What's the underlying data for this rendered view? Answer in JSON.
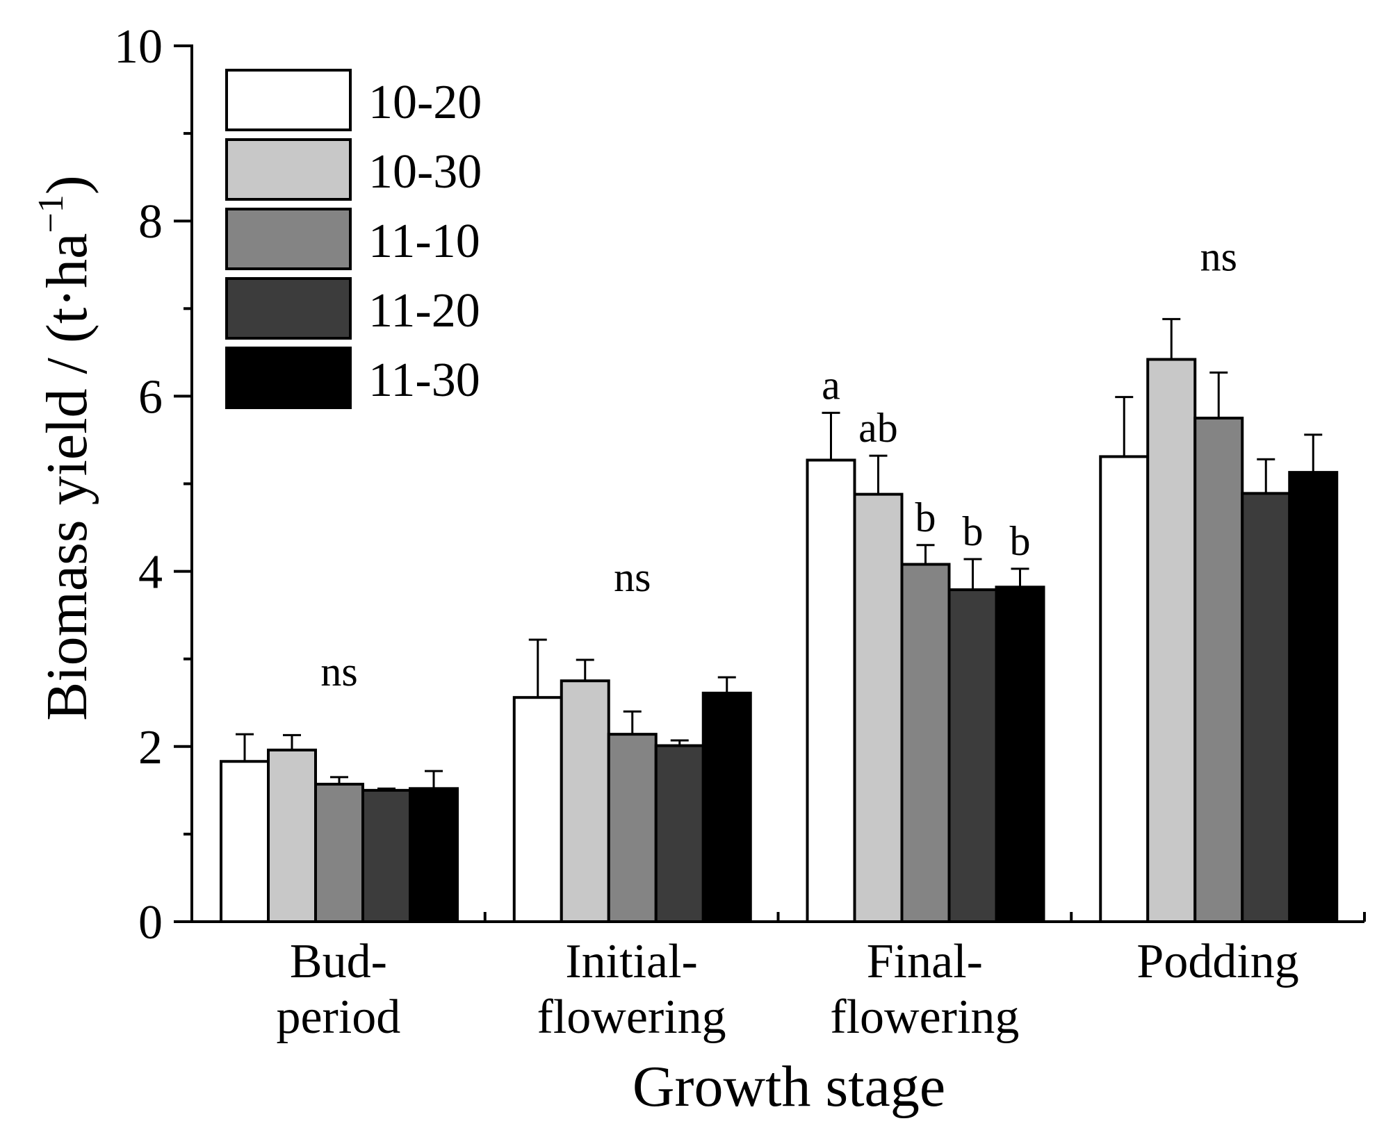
{
  "chart_data": {
    "type": "bar",
    "xlabel": "Growth stage",
    "ylabel_main": "Biomass yield / (t·ha",
    "ylabel_sup": "−1",
    "ylabel_close": ")",
    "ylim": [
      0,
      10
    ],
    "yticks": [
      0,
      2,
      4,
      6,
      8,
      10
    ],
    "grid": false,
    "legend_position": "top-left",
    "categories": [
      [
        "Bud-",
        "period"
      ],
      [
        "Initial-",
        "flowering"
      ],
      [
        "Final-",
        "flowering"
      ],
      [
        "Podding"
      ]
    ],
    "series": [
      {
        "name": "10-20",
        "color": "#ffffff",
        "values": [
          1.83,
          2.56,
          5.27,
          5.31
        ],
        "errors": [
          0.31,
          0.66,
          0.54,
          0.68
        ]
      },
      {
        "name": "10-30",
        "color": "#c8c8c8",
        "values": [
          1.96,
          2.75,
          4.88,
          6.42
        ],
        "errors": [
          0.17,
          0.24,
          0.44,
          0.46
        ]
      },
      {
        "name": "11-10",
        "color": "#848484",
        "values": [
          1.57,
          2.14,
          4.08,
          5.75
        ],
        "errors": [
          0.08,
          0.26,
          0.22,
          0.52
        ]
      },
      {
        "name": "11-20",
        "color": "#3c3c3c",
        "values": [
          1.5,
          2.01,
          3.79,
          4.89
        ],
        "errors": [
          0.02,
          0.06,
          0.35,
          0.39
        ]
      },
      {
        "name": "11-30",
        "color": "#000000",
        "values": [
          1.52,
          2.61,
          3.82,
          5.13
        ],
        "errors": [
          0.2,
          0.18,
          0.21,
          0.43
        ]
      }
    ],
    "annotations": [
      {
        "category": 0,
        "text": "ns"
      },
      {
        "category": 1,
        "text": "ns"
      },
      {
        "category": 2,
        "series": 0,
        "text": "a"
      },
      {
        "category": 2,
        "series": 1,
        "text": "ab"
      },
      {
        "category": 2,
        "series": 2,
        "text": "b"
      },
      {
        "category": 2,
        "series": 3,
        "text": "b"
      },
      {
        "category": 2,
        "series": 4,
        "text": "b"
      },
      {
        "category": 3,
        "text": "ns"
      }
    ]
  }
}
